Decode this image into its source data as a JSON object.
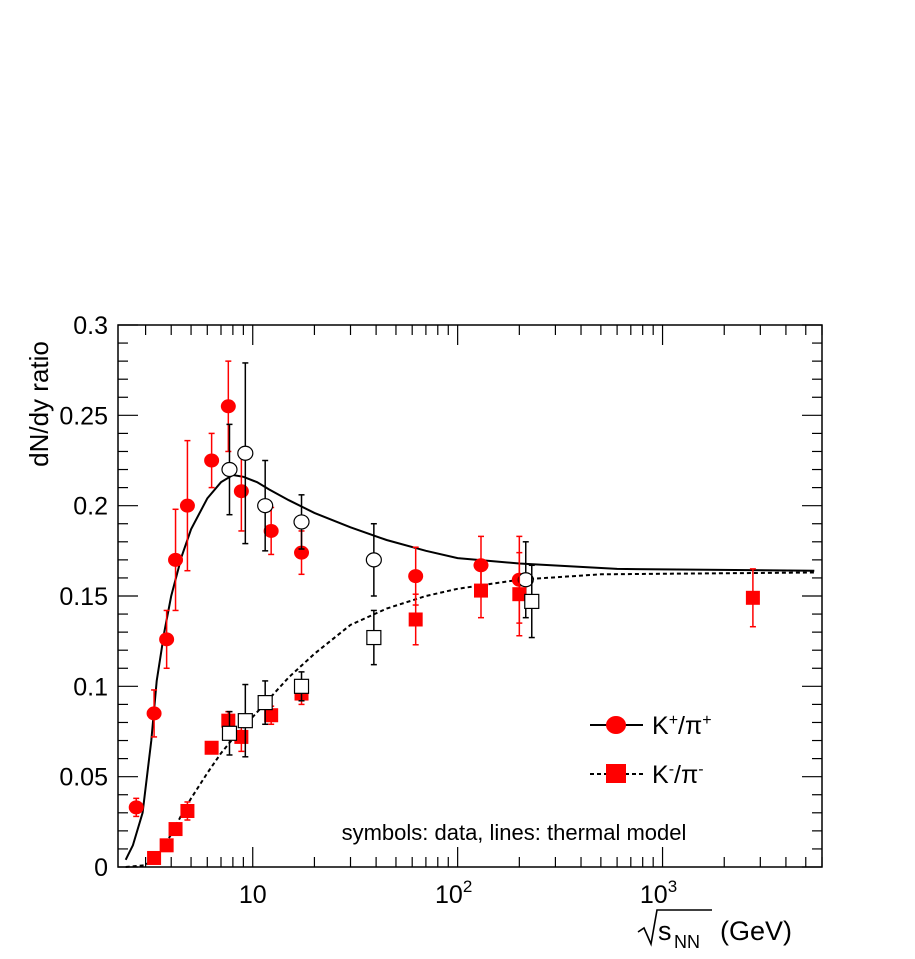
{
  "chart_data": {
    "type": "scatter",
    "xscale": "log",
    "xlim": [
      2.2,
      6000
    ],
    "ylim": [
      0,
      0.3
    ],
    "ylabel": "dN/dy ratio",
    "xlabel": "(GeV)",
    "xlabel_sqrt": "s",
    "xlabel_sub": "NN",
    "xtick_labels": [
      {
        "base": "10",
        "exp": ""
      },
      {
        "base": "10",
        "exp": "2"
      },
      {
        "base": "10",
        "exp": "3"
      }
    ],
    "ytick_labels": [
      "0",
      "0.05",
      "0.1",
      "0.15",
      "0.2",
      "0.25",
      "0.3"
    ],
    "annotation": "symbols: data, lines: thermal model",
    "legend": {
      "placement": "bottom-right",
      "entries": [
        {
          "main": "K",
          "sup1": "+",
          "slash": "/",
          "main2": "π",
          "sup2": "+",
          "line": "solid",
          "marker": "circle"
        },
        {
          "main": "K",
          "sup1": "-",
          "slash": "/",
          "main2": "π",
          "sup2": "-",
          "line": "dashed",
          "marker": "square"
        }
      ]
    },
    "colors": {
      "red": "#ff0000",
      "black": "#000000"
    },
    "series": [
      {
        "marker": "circle",
        "fill": "red",
        "points": [
          {
            "x": 2.7,
            "y": 0.033,
            "err": 0.005
          },
          {
            "x": 3.3,
            "y": 0.085,
            "err": 0.013
          },
          {
            "x": 3.8,
            "y": 0.126,
            "err": 0.016
          },
          {
            "x": 4.2,
            "y": 0.17,
            "err": 0.028
          },
          {
            "x": 4.8,
            "y": 0.2,
            "err": 0.036
          },
          {
            "x": 6.3,
            "y": 0.225,
            "err": 0.015
          },
          {
            "x": 7.6,
            "y": 0.255,
            "err": 0.025
          },
          {
            "x": 8.8,
            "y": 0.208,
            "err": 0.022
          },
          {
            "x": 12.3,
            "y": 0.186,
            "err": 0.013
          },
          {
            "x": 17.3,
            "y": 0.174,
            "err": 0.012
          },
          {
            "x": 62.4,
            "y": 0.161,
            "err": 0.016
          },
          {
            "x": 130,
            "y": 0.167,
            "err": 0.016
          },
          {
            "x": 200,
            "y": 0.159,
            "err": 0.024
          }
        ]
      },
      {
        "marker": "circle",
        "fill": "none",
        "points": [
          {
            "x": 7.7,
            "y": 0.22,
            "err": 0.025
          },
          {
            "x": 9.2,
            "y": 0.229,
            "err": 0.05
          },
          {
            "x": 11.5,
            "y": 0.2,
            "err": 0.025
          },
          {
            "x": 17.3,
            "y": 0.191,
            "err": 0.015
          },
          {
            "x": 39,
            "y": 0.17,
            "err": 0.02
          },
          {
            "x": 215,
            "y": 0.159,
            "err": 0.021
          }
        ]
      },
      {
        "marker": "square",
        "fill": "red",
        "points": [
          {
            "x": 3.3,
            "y": 0.005,
            "err": 0
          },
          {
            "x": 3.8,
            "y": 0.012,
            "err": 0
          },
          {
            "x": 4.2,
            "y": 0.021,
            "err": 0.002
          },
          {
            "x": 4.8,
            "y": 0.031,
            "err": 0.005
          },
          {
            "x": 6.3,
            "y": 0.066,
            "err": 0.003
          },
          {
            "x": 7.6,
            "y": 0.081,
            "err": 0.005
          },
          {
            "x": 8.8,
            "y": 0.072,
            "err": 0.008
          },
          {
            "x": 12.3,
            "y": 0.084,
            "err": 0.005
          },
          {
            "x": 17.3,
            "y": 0.096,
            "err": 0.006
          },
          {
            "x": 62.4,
            "y": 0.137,
            "err": 0.014
          },
          {
            "x": 130,
            "y": 0.153,
            "err": 0.015
          },
          {
            "x": 200,
            "y": 0.151,
            "err": 0.023
          },
          {
            "x": 2760,
            "y": 0.149,
            "err": 0.016
          }
        ]
      },
      {
        "marker": "square",
        "fill": "none",
        "points": [
          {
            "x": 7.7,
            "y": 0.074,
            "err": 0.012
          },
          {
            "x": 9.2,
            "y": 0.081,
            "err": 0.02
          },
          {
            "x": 11.5,
            "y": 0.091,
            "err": 0.012
          },
          {
            "x": 17.3,
            "y": 0.1,
            "err": 0.008
          },
          {
            "x": 39,
            "y": 0.127,
            "err": 0.015
          },
          {
            "x": 230,
            "y": 0.147,
            "err": 0.02
          }
        ]
      }
    ],
    "lines": [
      {
        "style": "solid",
        "points": [
          [
            2.4,
            0.004
          ],
          [
            2.6,
            0.012
          ],
          [
            2.9,
            0.03
          ],
          [
            3.2,
            0.07
          ],
          [
            3.4,
            0.103
          ],
          [
            3.7,
            0.13
          ],
          [
            4.0,
            0.15
          ],
          [
            4.5,
            0.172
          ],
          [
            5.0,
            0.187
          ],
          [
            6.0,
            0.204
          ],
          [
            7.0,
            0.213
          ],
          [
            8.0,
            0.217
          ],
          [
            9.0,
            0.216
          ],
          [
            10.5,
            0.213
          ],
          [
            12.0,
            0.209
          ],
          [
            15.0,
            0.203
          ],
          [
            20.0,
            0.196
          ],
          [
            30.0,
            0.188
          ],
          [
            45.0,
            0.181
          ],
          [
            70.0,
            0.175
          ],
          [
            100,
            0.171
          ],
          [
            200,
            0.168
          ],
          [
            600,
            0.165
          ],
          [
            5500,
            0.164
          ]
        ]
      },
      {
        "style": "dashed",
        "points": [
          [
            2.4,
            0
          ],
          [
            3.0,
            0.001
          ],
          [
            3.5,
            0.008
          ],
          [
            4.0,
            0.018
          ],
          [
            4.5,
            0.029
          ],
          [
            5.0,
            0.038
          ],
          [
            6.0,
            0.052
          ],
          [
            7.0,
            0.063
          ],
          [
            8.0,
            0.071
          ],
          [
            10.0,
            0.083
          ],
          [
            12.0,
            0.093
          ],
          [
            15.0,
            0.105
          ],
          [
            20.0,
            0.118
          ],
          [
            30.0,
            0.134
          ],
          [
            45.0,
            0.143
          ],
          [
            70.0,
            0.15
          ],
          [
            100,
            0.154
          ],
          [
            200,
            0.159
          ],
          [
            500,
            0.162
          ],
          [
            5500,
            0.163
          ]
        ]
      }
    ]
  }
}
